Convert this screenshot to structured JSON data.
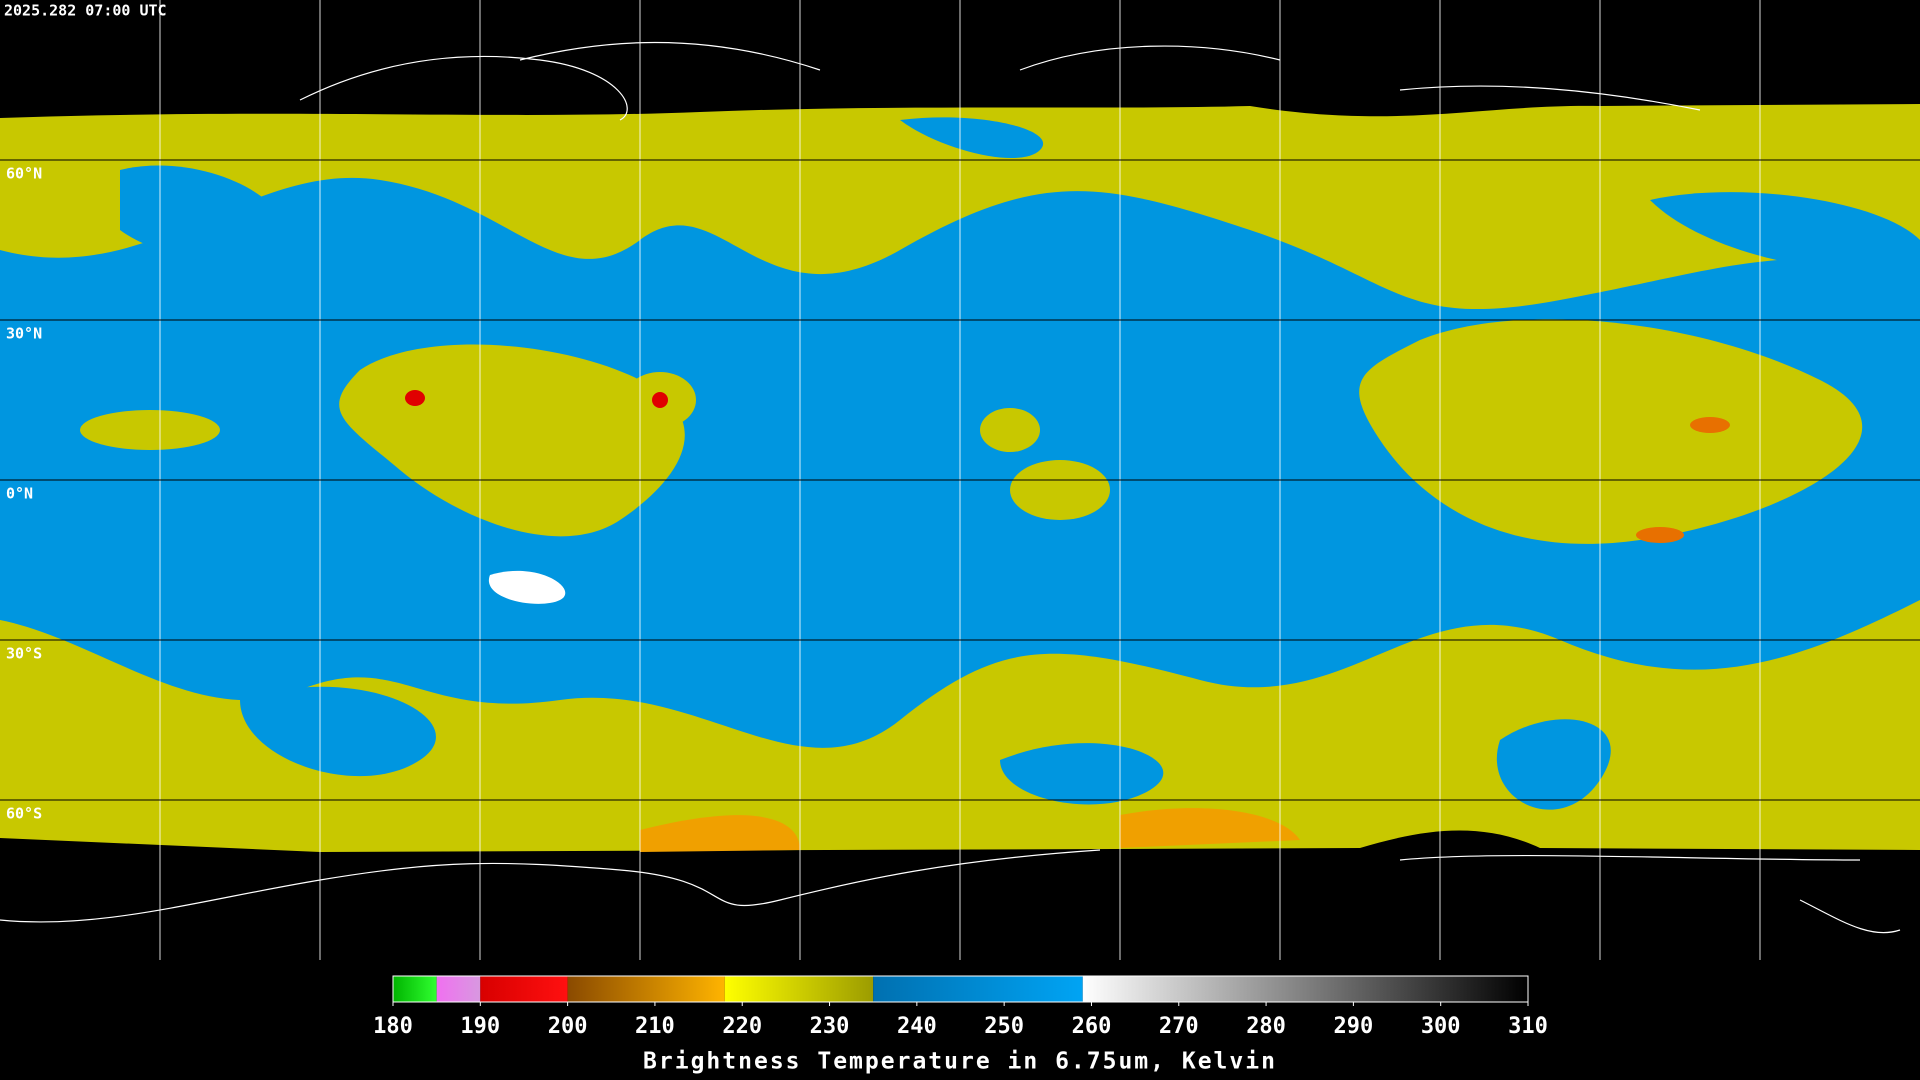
{
  "header": {
    "timestamp": "2025.282 07:00 UTC"
  },
  "map": {
    "lat_lines": [
      {
        "value": 60,
        "label": "60°N"
      },
      {
        "value": 30,
        "label": "30°N"
      },
      {
        "value": 0,
        "label": "0°N"
      },
      {
        "value": -30,
        "label": "30°S"
      },
      {
        "value": -60,
        "label": "60°S"
      }
    ]
  },
  "colorbar": {
    "lim": [
      180,
      310
    ],
    "ticks": [
      180,
      190,
      200,
      210,
      220,
      230,
      240,
      250,
      260,
      270,
      280,
      290,
      300,
      310
    ],
    "label": "Brightness Temperature in 6.75um, Kelvin",
    "segments": [
      {
        "from": 180,
        "to": 185,
        "colors": [
          "#00b400",
          "#30ff30"
        ]
      },
      {
        "from": 185,
        "to": 190,
        "colors": [
          "#f070f0",
          "#d898e0"
        ]
      },
      {
        "from": 190,
        "to": 200,
        "colors": [
          "#d80000",
          "#ff1010"
        ]
      },
      {
        "from": 200,
        "to": 218,
        "colors": [
          "#8a4a00",
          "#ffb400"
        ]
      },
      {
        "from": 218,
        "to": 235,
        "colors": [
          "#ffff00",
          "#9c9c00"
        ]
      },
      {
        "from": 235,
        "to": 259,
        "colors": [
          "#0070b0",
          "#00a4f4"
        ]
      },
      {
        "from": 259,
        "to": 310,
        "colors": [
          "#ffffff",
          "#000000"
        ]
      }
    ]
  }
}
